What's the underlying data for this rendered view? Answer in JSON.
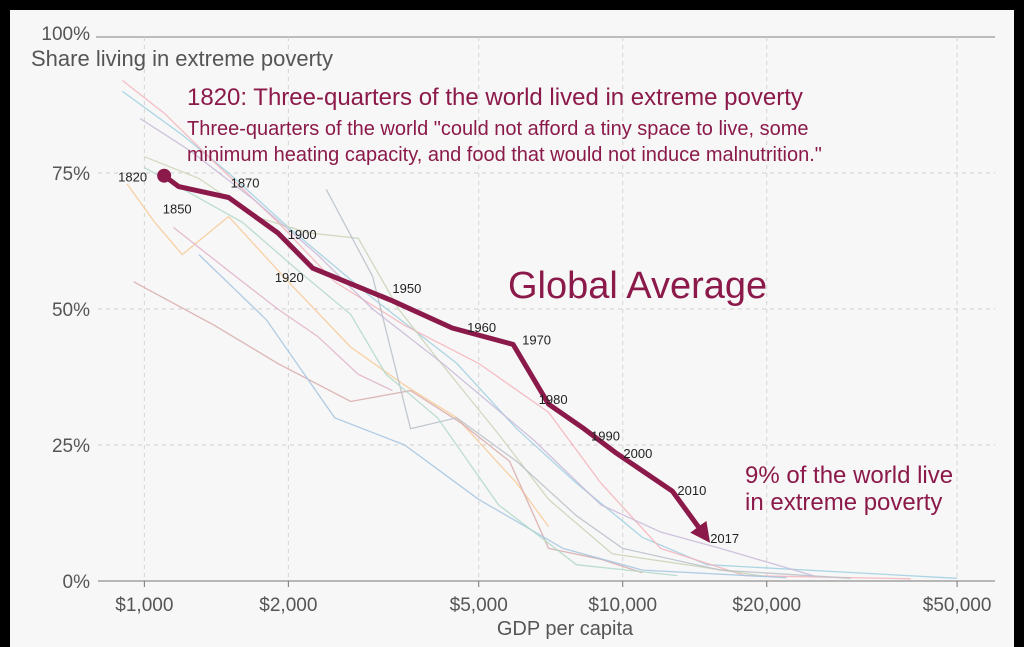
{
  "chart_data": {
    "type": "line",
    "ylabel": "Share living in extreme poverty",
    "xlabel": "GDP per capita",
    "x_scale": "log",
    "xlim": [
      800,
      60000
    ],
    "ylim": [
      0,
      100
    ],
    "y_ticks": [
      {
        "value": 0,
        "label": "0%"
      },
      {
        "value": 25,
        "label": "25%"
      },
      {
        "value": 50,
        "label": "50%"
      },
      {
        "value": 75,
        "label": "75%"
      },
      {
        "value": 100,
        "label": "100%"
      }
    ],
    "x_ticks": [
      {
        "value": 1000,
        "label": "$1,000"
      },
      {
        "value": 2000,
        "label": "$2,000"
      },
      {
        "value": 5000,
        "label": "$5,000"
      },
      {
        "value": 10000,
        "label": "$10,000"
      },
      {
        "value": 20000,
        "label": "$20,000"
      },
      {
        "value": 50000,
        "label": "$50,000"
      }
    ],
    "grid": true,
    "annotations": {
      "title": "1820: Three-quarters of the world lived in extreme poverty",
      "subtitle_line1": "Three-quarters of the world \"could not afford a tiny space to live, some",
      "subtitle_line2": "minimum heating capacity, and food that would not induce malnutrition.\"",
      "global_label": "Global Average",
      "end_note_line1": "9% of the world live",
      "end_note_line2": "in extreme poverty"
    },
    "global_series": {
      "color": "#8b1a4a",
      "points": [
        {
          "year": "1820",
          "x": 1100,
          "y": 74.5
        },
        {
          "year": "1850",
          "x": 1180,
          "y": 72.5
        },
        {
          "year": "1870",
          "x": 1500,
          "y": 70.5
        },
        {
          "year": "1900",
          "x": 1900,
          "y": 64
        },
        {
          "year": "1920",
          "x": 2250,
          "y": 57.5
        },
        {
          "year": "1950",
          "x": 3300,
          "y": 51.5
        },
        {
          "year": "1960",
          "x": 4400,
          "y": 46.5
        },
        {
          "year": "1970",
          "x": 5900,
          "y": 43.5
        },
        {
          "year": "1980",
          "x": 7000,
          "y": 32.5
        },
        {
          "year": "1990",
          "x": 8300,
          "y": 28
        },
        {
          "year": "2000",
          "x": 9700,
          "y": 23.5
        },
        {
          "year": "2010",
          "x": 12700,
          "y": 16.5
        },
        {
          "year": "2017",
          "x": 14800,
          "y": 8.5
        }
      ]
    },
    "background_series": [
      {
        "color": "#9ecfe0",
        "points": [
          [
            900,
            90
          ],
          [
            1200,
            82
          ],
          [
            1500,
            75
          ],
          [
            2000,
            65
          ],
          [
            3000,
            52
          ],
          [
            4500,
            40
          ],
          [
            6000,
            28
          ],
          [
            8000,
            18
          ],
          [
            11000,
            8
          ],
          [
            15000,
            3
          ],
          [
            50000,
            0.5
          ]
        ]
      },
      {
        "color": "#f4b3bb",
        "points": [
          [
            900,
            92
          ],
          [
            1100,
            86
          ],
          [
            1400,
            77
          ],
          [
            1900,
            66
          ],
          [
            2500,
            55
          ],
          [
            3500,
            47
          ],
          [
            5000,
            40
          ],
          [
            7000,
            31
          ],
          [
            9000,
            18
          ],
          [
            12000,
            6
          ],
          [
            18000,
            1
          ],
          [
            40000,
            0.4
          ]
        ]
      },
      {
        "color": "#f7c995",
        "points": [
          [
            920,
            73
          ],
          [
            1050,
            66
          ],
          [
            1200,
            60
          ],
          [
            1500,
            67
          ],
          [
            2000,
            55
          ],
          [
            2700,
            43
          ],
          [
            3500,
            36
          ],
          [
            4500,
            30
          ],
          [
            6000,
            18
          ],
          [
            7000,
            10
          ]
        ]
      },
      {
        "color": "#c9d4b6",
        "points": [
          [
            1000,
            78
          ],
          [
            1300,
            74
          ],
          [
            1700,
            67
          ],
          [
            2200,
            64
          ],
          [
            2800,
            63
          ],
          [
            3400,
            50
          ],
          [
            4000,
            42
          ],
          [
            5500,
            27
          ],
          [
            7000,
            15
          ],
          [
            9500,
            5
          ],
          [
            20000,
            0.8
          ]
        ]
      },
      {
        "color": "#d8a9a9",
        "points": [
          [
            950,
            55
          ],
          [
            1400,
            47
          ],
          [
            1900,
            40
          ],
          [
            2700,
            33
          ],
          [
            3600,
            35
          ],
          [
            4600,
            29
          ],
          [
            5800,
            22
          ],
          [
            7000,
            6
          ],
          [
            9000,
            4
          ],
          [
            11000,
            1.5
          ]
        ]
      },
      {
        "color": "#b8c0c8",
        "points": [
          [
            2400,
            72
          ],
          [
            3000,
            56
          ],
          [
            3600,
            28
          ],
          [
            4500,
            30
          ],
          [
            6000,
            22
          ],
          [
            8000,
            12
          ],
          [
            10000,
            6
          ],
          [
            16000,
            2
          ],
          [
            30000,
            0.5
          ]
        ]
      },
      {
        "color": "#a3c4e0",
        "points": [
          [
            1300,
            60
          ],
          [
            1800,
            48
          ],
          [
            2500,
            30
          ],
          [
            3500,
            25
          ],
          [
            5000,
            15
          ],
          [
            7500,
            6
          ],
          [
            11000,
            2
          ],
          [
            22000,
            0.6
          ]
        ]
      },
      {
        "color": "#e0b0c8",
        "points": [
          [
            1150,
            65
          ],
          [
            1500,
            57
          ],
          [
            1900,
            50
          ],
          [
            2300,
            45
          ],
          [
            2800,
            38
          ],
          [
            3300,
            35
          ]
        ]
      },
      {
        "color": "#b0d8c8",
        "points": [
          [
            1000,
            76
          ],
          [
            1600,
            66
          ],
          [
            2100,
            57
          ],
          [
            2700,
            49
          ],
          [
            3200,
            38
          ],
          [
            4100,
            30
          ],
          [
            5500,
            14
          ],
          [
            8000,
            3
          ],
          [
            13000,
            1
          ]
        ]
      },
      {
        "color": "#c8b8d8",
        "points": [
          [
            980,
            85
          ],
          [
            1250,
            79
          ],
          [
            1700,
            70
          ],
          [
            2300,
            60
          ],
          [
            3000,
            50
          ],
          [
            4200,
            40
          ],
          [
            6500,
            26
          ],
          [
            9000,
            14
          ],
          [
            12000,
            9
          ],
          [
            16000,
            6
          ],
          [
            25000,
            1
          ]
        ]
      }
    ]
  }
}
